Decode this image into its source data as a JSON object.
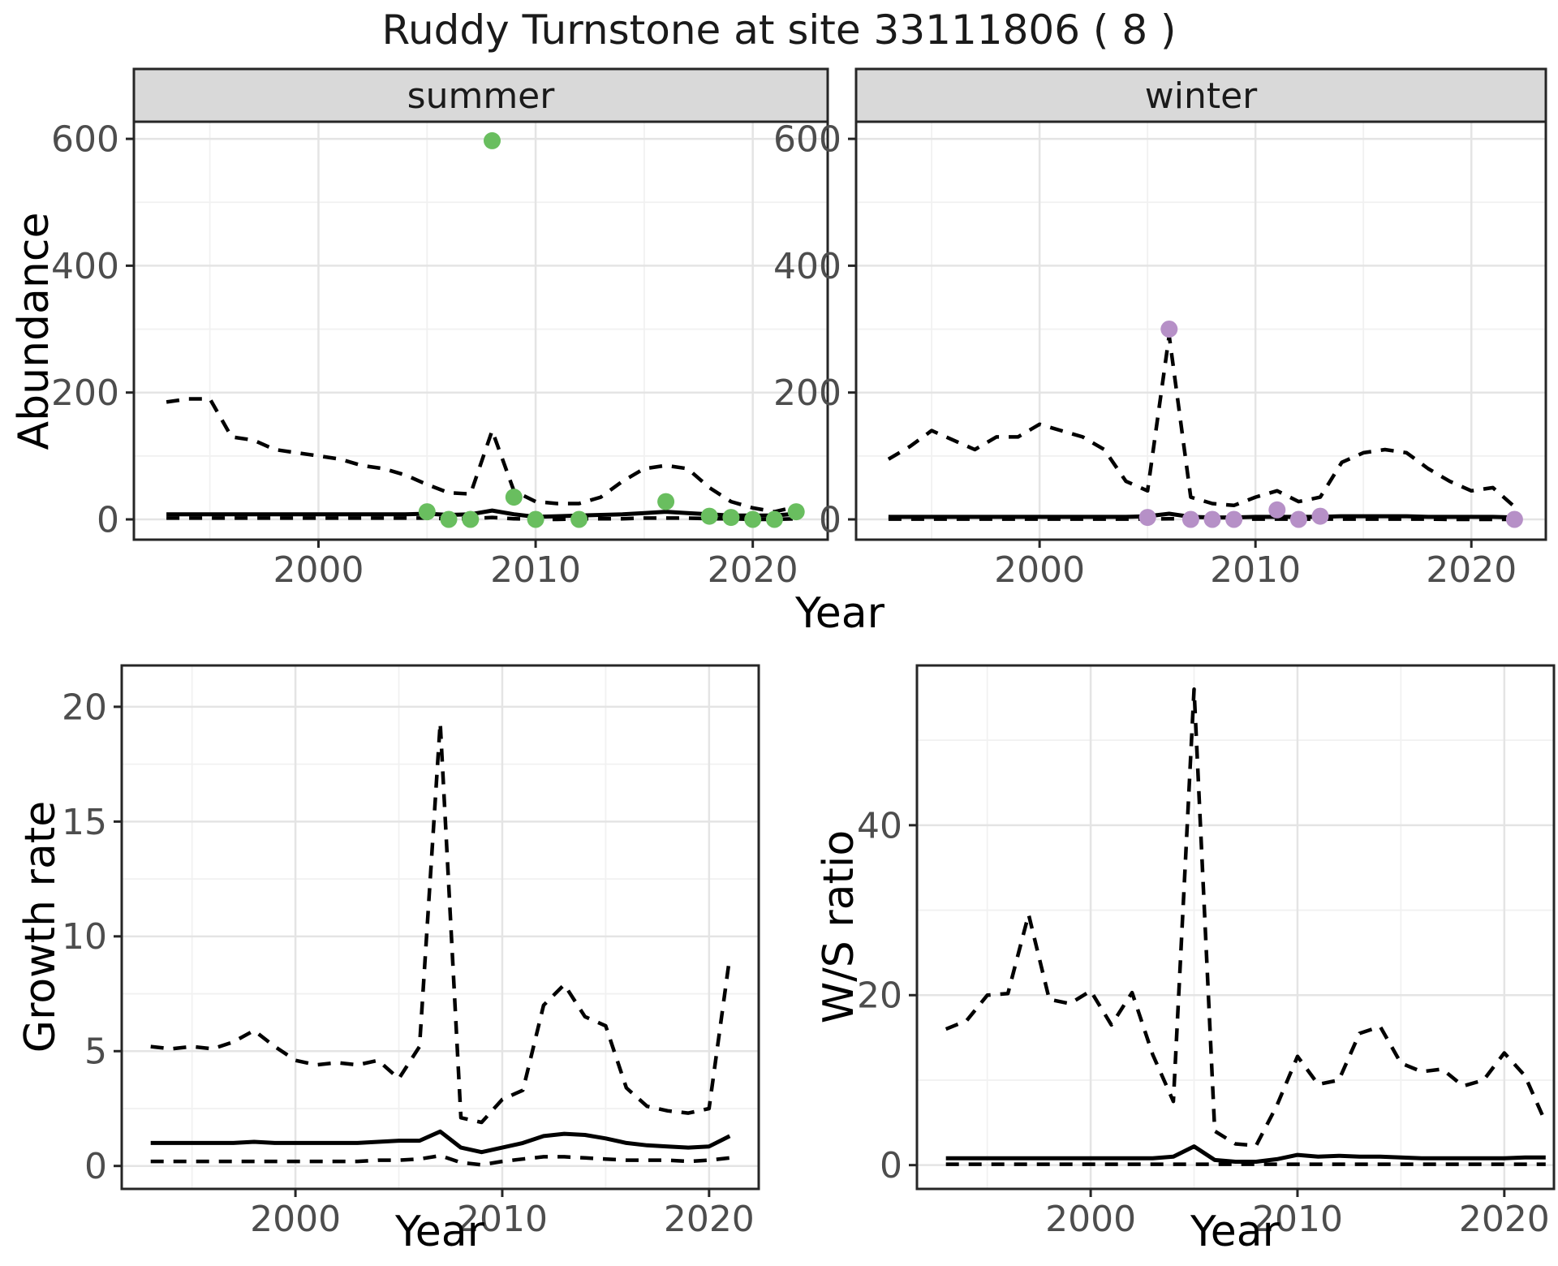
{
  "title": "Ruddy Turnstone at site 33111806 ( 8 )",
  "labels": {
    "abundance": "Abundance",
    "growth_rate": "Growth rate",
    "ws_ratio": "W/S ratio",
    "year": "Year"
  },
  "colors": {
    "summer_point": "#69be5f",
    "winter_point": "#b690c7",
    "line": "#000000",
    "panel_border": "#262626",
    "strip_bg": "#d9d9d9",
    "strip_text": "#1a1a1a",
    "grid_major": "#e4e4e4",
    "grid_minor": "#f1f1f1",
    "axis_text": "#4d4d4d",
    "panel_bg": "#ffffff"
  },
  "chart_data": [
    {
      "id": "abundance-summer",
      "type": "line",
      "facet_label": "summer",
      "xlabel": "Year",
      "ylabel": "Abundance",
      "xlim": [
        1991.5,
        2023.45
      ],
      "ylim": [
        -32,
        627
      ],
      "x_ticks": [
        2000,
        2010,
        2020
      ],
      "x_minor": [
        1995,
        2005,
        2015
      ],
      "y_ticks": [
        0,
        200,
        400,
        600
      ],
      "y_minor": [
        100,
        300,
        500
      ],
      "years": [
        1993,
        1994,
        1995,
        1996,
        1997,
        1998,
        1999,
        2000,
        2001,
        2002,
        2003,
        2004,
        2005,
        2006,
        2007,
        2008,
        2009,
        2010,
        2011,
        2012,
        2013,
        2014,
        2015,
        2016,
        2017,
        2018,
        2019,
        2020,
        2021,
        2022
      ],
      "series": [
        {
          "name": "upper-ci",
          "style": "dashed",
          "values": [
            185,
            190,
            190,
            130,
            125,
            110,
            105,
            100,
            95,
            85,
            80,
            70,
            55,
            42,
            40,
            140,
            45,
            28,
            25,
            25,
            35,
            60,
            80,
            85,
            80,
            50,
            28,
            18,
            12,
            20
          ]
        },
        {
          "name": "median",
          "style": "solid",
          "values": [
            8,
            8,
            8,
            8,
            8,
            8,
            8,
            8,
            8,
            8,
            8,
            8,
            9,
            7,
            8,
            14,
            8,
            4,
            5,
            6,
            7,
            8,
            10,
            12,
            10,
            8,
            6,
            6,
            6,
            9
          ]
        },
        {
          "name": "lower-ci",
          "style": "dashed",
          "values": [
            2,
            2,
            2,
            2,
            2,
            2,
            2,
            2,
            2,
            2,
            2,
            2,
            2,
            1,
            1,
            3,
            1,
            0,
            0,
            1,
            1,
            1,
            2,
            2,
            2,
            1,
            1,
            0,
            0,
            1
          ]
        }
      ],
      "points": {
        "name": "observed-summer",
        "color": "summer_point",
        "data": [
          [
            2005,
            12
          ],
          [
            2006,
            0
          ],
          [
            2007,
            0
          ],
          [
            2008,
            597
          ],
          [
            2009,
            35
          ],
          [
            2010,
            0
          ],
          [
            2012,
            0
          ],
          [
            2016,
            28
          ],
          [
            2018,
            5
          ],
          [
            2019,
            3
          ],
          [
            2020,
            0
          ],
          [
            2021,
            0
          ],
          [
            2022,
            12
          ]
        ]
      }
    },
    {
      "id": "abundance-winter",
      "type": "line",
      "facet_label": "winter",
      "xlabel": "Year",
      "ylabel": "Abundance",
      "xlim": [
        1991.5,
        2023.45
      ],
      "ylim": [
        -32,
        627
      ],
      "x_ticks": [
        2000,
        2010,
        2020
      ],
      "x_minor": [
        1995,
        2005,
        2015
      ],
      "y_ticks": [
        0,
        200,
        400,
        600
      ],
      "y_minor": [
        100,
        300,
        500
      ],
      "years": [
        1993,
        1994,
        1995,
        1996,
        1997,
        1998,
        1999,
        2000,
        2001,
        2002,
        2003,
        2004,
        2005,
        2006,
        2007,
        2008,
        2009,
        2010,
        2011,
        2012,
        2013,
        2014,
        2015,
        2016,
        2017,
        2018,
        2019,
        2020,
        2021,
        2022
      ],
      "series": [
        {
          "name": "upper-ci",
          "style": "dashed",
          "values": [
            95,
            115,
            140,
            125,
            110,
            130,
            130,
            150,
            140,
            130,
            110,
            60,
            45,
            290,
            35,
            25,
            22,
            35,
            45,
            28,
            35,
            90,
            105,
            110,
            105,
            80,
            60,
            45,
            50,
            20
          ]
        },
        {
          "name": "median",
          "style": "solid",
          "values": [
            4,
            4,
            4,
            4,
            4,
            4,
            4,
            4,
            4,
            4,
            4,
            4,
            5,
            9,
            4,
            3,
            3,
            4,
            4,
            4,
            4,
            5,
            5,
            5,
            5,
            4,
            4,
            4,
            4,
            3
          ]
        },
        {
          "name": "lower-ci",
          "style": "dashed",
          "values": [
            0.5,
            0.5,
            0.5,
            0.5,
            0.5,
            0.5,
            0.5,
            0.5,
            0.5,
            0.5,
            0.5,
            0.5,
            0.5,
            1,
            0.5,
            0,
            0,
            0.5,
            0.5,
            0.5,
            0.5,
            0.5,
            0.5,
            0.5,
            0.5,
            0.5,
            0,
            0,
            0,
            0
          ]
        }
      ],
      "points": {
        "name": "observed-winter",
        "color": "winter_point",
        "data": [
          [
            2005,
            3
          ],
          [
            2006,
            300
          ],
          [
            2007,
            0
          ],
          [
            2008,
            0
          ],
          [
            2009,
            0
          ],
          [
            2011,
            15
          ],
          [
            2012,
            0
          ],
          [
            2013,
            5
          ],
          [
            2022,
            0
          ]
        ]
      }
    },
    {
      "id": "growth-rate",
      "type": "line",
      "facet_label": null,
      "xlabel": "Year",
      "ylabel": "Growth rate",
      "xlim": [
        1991.6,
        2022.4
      ],
      "ylim": [
        -1,
        21.8
      ],
      "x_ticks": [
        2000,
        2010,
        2020
      ],
      "x_minor": [
        1995,
        2005,
        2015
      ],
      "y_ticks": [
        0,
        5,
        10,
        15,
        20
      ],
      "y_minor": [
        2.5,
        7.5,
        12.5,
        17.5
      ],
      "years": [
        1993,
        1994,
        1995,
        1996,
        1997,
        1998,
        1999,
        2000,
        2001,
        2002,
        2003,
        2004,
        2005,
        2006,
        2007,
        2008,
        2009,
        2010,
        2011,
        2012,
        2013,
        2014,
        2015,
        2016,
        2017,
        2018,
        2019,
        2020,
        2021
      ],
      "series": [
        {
          "name": "upper-ci",
          "style": "dashed",
          "values": [
            5.2,
            5.1,
            5.2,
            5.1,
            5.4,
            5.9,
            5.2,
            4.6,
            4.4,
            4.5,
            4.4,
            4.6,
            3.8,
            5.2,
            19.3,
            2.1,
            1.9,
            2.9,
            3.3,
            7.0,
            7.9,
            6.5,
            6.1,
            3.4,
            2.6,
            2.4,
            2.3,
            2.5,
            9.1
          ]
        },
        {
          "name": "median",
          "style": "solid",
          "values": [
            1.0,
            1.0,
            1.0,
            1.0,
            1.0,
            1.05,
            1.0,
            1.0,
            1.0,
            1.0,
            1.0,
            1.05,
            1.1,
            1.1,
            1.5,
            0.8,
            0.6,
            0.8,
            1.0,
            1.3,
            1.4,
            1.35,
            1.2,
            1.0,
            0.9,
            0.85,
            0.8,
            0.85,
            1.3
          ]
        },
        {
          "name": "lower-ci",
          "style": "dashed",
          "values": [
            0.2,
            0.2,
            0.2,
            0.2,
            0.2,
            0.2,
            0.2,
            0.2,
            0.2,
            0.2,
            0.2,
            0.25,
            0.25,
            0.3,
            0.45,
            0.15,
            0.05,
            0.2,
            0.3,
            0.4,
            0.4,
            0.35,
            0.3,
            0.25,
            0.25,
            0.25,
            0.2,
            0.25,
            0.35
          ]
        }
      ],
      "points": null
    },
    {
      "id": "ws-ratio",
      "type": "line",
      "facet_label": null,
      "xlabel": "Year",
      "ylabel": "W/S ratio",
      "xlim": [
        1991.6,
        2022.4
      ],
      "ylim": [
        -2.8,
        58.8
      ],
      "x_ticks": [
        2000,
        2010,
        2020
      ],
      "x_minor": [
        1995,
        2005,
        2015
      ],
      "y_ticks": [
        0,
        20,
        40
      ],
      "y_minor": [
        10,
        30,
        50
      ],
      "years": [
        1993,
        1994,
        1995,
        1996,
        1997,
        1998,
        1999,
        2000,
        2001,
        2002,
        2003,
        2004,
        2005,
        2006,
        2007,
        2008,
        2009,
        2010,
        2011,
        2012,
        2013,
        2014,
        2015,
        2016,
        2017,
        2018,
        2019,
        2020,
        2021,
        2022
      ],
      "series": [
        {
          "name": "upper-ci",
          "style": "dashed",
          "values": [
            16,
            17,
            20,
            20.2,
            29.5,
            19.5,
            19,
            20.5,
            16.5,
            20.3,
            13,
            7.5,
            56,
            4,
            2.5,
            2.3,
            7,
            12.8,
            9.5,
            10,
            15.5,
            16.3,
            12,
            11,
            11.3,
            9.3,
            10,
            13.2,
            10.5,
            5
          ]
        },
        {
          "name": "median",
          "style": "solid",
          "values": [
            0.8,
            0.8,
            0.8,
            0.8,
            0.8,
            0.8,
            0.8,
            0.8,
            0.8,
            0.8,
            0.8,
            1.0,
            2.2,
            0.6,
            0.4,
            0.4,
            0.7,
            1.2,
            1.0,
            1.1,
            1.0,
            1.0,
            0.9,
            0.8,
            0.8,
            0.8,
            0.8,
            0.8,
            0.9,
            0.9
          ]
        },
        {
          "name": "lower-ci",
          "style": "dashed",
          "values": [
            0.1,
            0.1,
            0.1,
            0.1,
            0.1,
            0.1,
            0.1,
            0.1,
            0.1,
            0.1,
            0.1,
            0.1,
            0.1,
            0.1,
            0.1,
            0.1,
            0.1,
            0.1,
            0.1,
            0.1,
            0.1,
            0.1,
            0.1,
            0.1,
            0.1,
            0.1,
            0.1,
            0.1,
            0.1,
            0.1
          ]
        }
      ],
      "points": null
    }
  ]
}
